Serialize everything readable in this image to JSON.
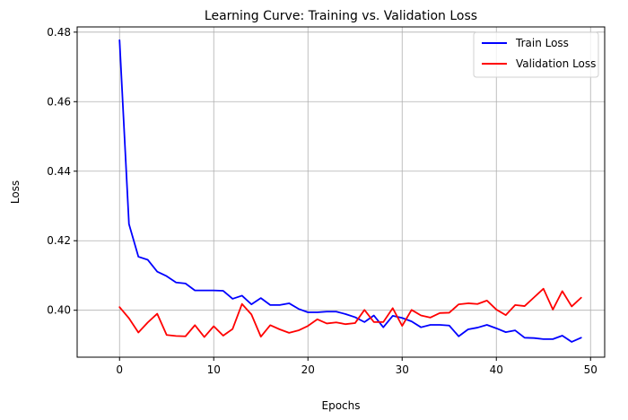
{
  "chart_data": {
    "type": "line",
    "title": "Learning Curve: Training vs. Validation Loss",
    "xlabel": "Epochs",
    "ylabel": "Loss",
    "xlim": [
      -4.5,
      51.5
    ],
    "ylim": [
      0.3865,
      0.4815
    ],
    "xticks": [
      0,
      10,
      20,
      30,
      40,
      50
    ],
    "xtick_labels": [
      "0",
      "10",
      "20",
      "30",
      "40",
      "50"
    ],
    "yticks": [
      0.4,
      0.42,
      0.44,
      0.46,
      0.48
    ],
    "ytick_labels": [
      "0.40",
      "0.42",
      "0.44",
      "0.46",
      "0.48"
    ],
    "grid": true,
    "legend_position": "top-right",
    "x": [
      0,
      1,
      2,
      3,
      4,
      5,
      6,
      7,
      8,
      9,
      10,
      11,
      12,
      13,
      14,
      15,
      16,
      17,
      18,
      19,
      20,
      21,
      22,
      23,
      24,
      25,
      26,
      27,
      28,
      29,
      30,
      31,
      32,
      33,
      34,
      35,
      36,
      37,
      38,
      39,
      40,
      41,
      42,
      43,
      44,
      45,
      46,
      47,
      48,
      49
    ],
    "series": [
      {
        "name": "Train Loss",
        "color": "#0000ff",
        "values": [
          0.4777,
          0.4248,
          0.4154,
          0.4145,
          0.4111,
          0.4098,
          0.408,
          0.4077,
          0.4057,
          0.4057,
          0.4057,
          0.4056,
          0.4033,
          0.4042,
          0.4017,
          0.4035,
          0.4015,
          0.4015,
          0.402,
          0.4004,
          0.3994,
          0.3994,
          0.3996,
          0.3996,
          0.3989,
          0.398,
          0.3966,
          0.3985,
          0.3951,
          0.3984,
          0.3978,
          0.3968,
          0.3951,
          0.3958,
          0.3958,
          0.3956,
          0.3925,
          0.3945,
          0.395,
          0.3958,
          0.3948,
          0.3937,
          0.3942,
          0.3921,
          0.392,
          0.3917,
          0.3917,
          0.3927,
          0.3909,
          0.3921
        ]
      },
      {
        "name": "Validation Loss",
        "color": "#ff0000",
        "values": [
          0.4009,
          0.3977,
          0.3936,
          0.3965,
          0.399,
          0.3929,
          0.3926,
          0.3925,
          0.3957,
          0.3923,
          0.3954,
          0.3927,
          0.3946,
          0.4018,
          0.3988,
          0.3924,
          0.3957,
          0.3945,
          0.3935,
          0.3942,
          0.3955,
          0.3974,
          0.3962,
          0.3965,
          0.396,
          0.3963,
          0.4001,
          0.3966,
          0.3966,
          0.4006,
          0.3955,
          0.4001,
          0.3985,
          0.3979,
          0.3992,
          0.3993,
          0.4017,
          0.402,
          0.4018,
          0.4028,
          0.4002,
          0.3986,
          0.4015,
          0.4012,
          0.4037,
          0.4062,
          0.4002,
          0.4055,
          0.4011,
          0.4036
        ]
      }
    ]
  }
}
